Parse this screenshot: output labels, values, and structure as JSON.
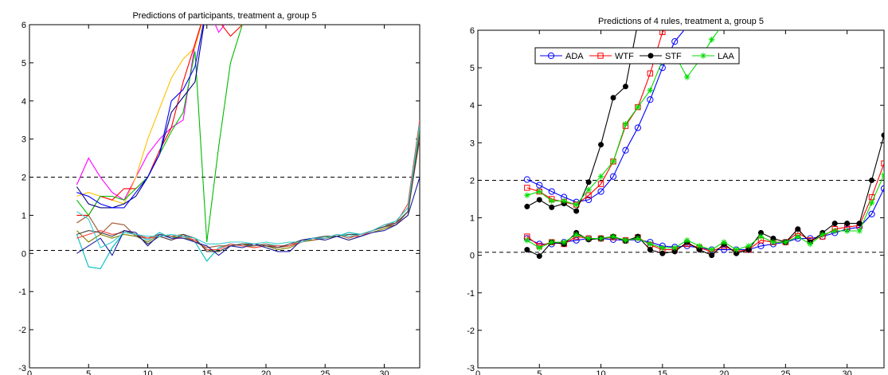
{
  "chart_data": [
    {
      "type": "line",
      "title": "Predictions of participants, treatment a, group 5",
      "xlabel": "",
      "ylabel": "",
      "xlim": [
        0,
        33
      ],
      "ylim": [
        -3,
        6
      ],
      "xticks": [
        0,
        5,
        10,
        15,
        20,
        25,
        30
      ],
      "yticks": [
        -3,
        -2,
        -1,
        0,
        1,
        2,
        3,
        4,
        5,
        6
      ],
      "grid": false,
      "reference_lines": [
        2,
        0.08
      ],
      "x": [
        4,
        5,
        6,
        7,
        8,
        9,
        10,
        11,
        12,
        13,
        14,
        15,
        16,
        17,
        18,
        19,
        20,
        21,
        22,
        23,
        24,
        25,
        26,
        27,
        28,
        29,
        30,
        31,
        32,
        33
      ],
      "series": [
        {
          "color": "#ff00ff",
          "values": [
            1.8,
            2.5,
            2.0,
            1.6,
            1.4,
            2.0,
            2.6,
            3.0,
            3.3,
            3.5,
            5.5,
            6.5,
            5.8,
            6.2,
            null,
            null,
            null,
            null,
            null,
            null,
            null,
            null,
            null,
            null,
            null,
            null,
            null,
            null,
            null,
            null
          ]
        },
        {
          "color": "#ffbf00",
          "values": [
            1.5,
            1.6,
            1.5,
            1.4,
            1.3,
            2.0,
            3.0,
            3.8,
            4.6,
            5.1,
            5.4,
            6.5,
            null,
            null,
            null,
            null,
            null,
            null,
            null,
            null,
            null,
            null,
            null,
            null,
            null,
            null,
            null,
            null,
            null,
            null
          ]
        },
        {
          "color": "#ff0000",
          "values": [
            1.0,
            1.0,
            1.5,
            1.4,
            1.7,
            1.7,
            2.0,
            2.7,
            3.3,
            4.5,
            5.5,
            6.5,
            6.1,
            5.7,
            6.0,
            6.3,
            null,
            null,
            null,
            null,
            null,
            null,
            null,
            null,
            null,
            null,
            null,
            null,
            null,
            null
          ]
        },
        {
          "color": "#00bb00",
          "values": [
            1.4,
            1.0,
            1.5,
            1.5,
            1.4,
            1.7,
            2.0,
            2.6,
            3.2,
            3.7,
            5.3,
            0.3,
            2.8,
            5.0,
            6.0,
            6.5,
            null,
            null,
            null,
            null,
            null,
            null,
            null,
            null,
            null,
            null,
            null,
            null,
            null,
            null
          ]
        },
        {
          "color": "#000080",
          "values": [
            1.75,
            1.3,
            1.2,
            1.2,
            1.3,
            1.5,
            2.0,
            2.6,
            3.7,
            4.1,
            4.5,
            6.5,
            null,
            null,
            null,
            null,
            null,
            null,
            null,
            null,
            null,
            null,
            null,
            null,
            null,
            null,
            null,
            null,
            null,
            null
          ]
        },
        {
          "color": "#0000ff",
          "values": [
            1.6,
            1.5,
            1.3,
            1.2,
            1.2,
            1.6,
            2.0,
            2.6,
            4.0,
            4.3,
            4.9,
            6.5,
            null,
            null,
            null,
            null,
            null,
            null,
            null,
            null,
            null,
            null,
            null,
            null,
            null,
            null,
            null,
            null,
            null,
            null
          ]
        },
        {
          "color": "#00bfbf",
          "values": [
            0.5,
            -0.35,
            -0.4,
            0.15,
            0.55,
            0.5,
            0.35,
            0.55,
            0.4,
            0.45,
            0.3,
            -0.2,
            0.15,
            0.25,
            0.2,
            0.2,
            0.25,
            0.2,
            0.2,
            0.35,
            0.4,
            0.45,
            0.45,
            0.55,
            0.5,
            0.6,
            0.7,
            0.85,
            1.2,
            3.3
          ]
        },
        {
          "color": "#808000",
          "values": [
            0.6,
            0.3,
            0.5,
            0.4,
            0.5,
            0.45,
            0.3,
            0.5,
            0.45,
            0.4,
            0.35,
            0.1,
            0.05,
            0.2,
            0.25,
            0.15,
            0.2,
            0.1,
            0.15,
            0.3,
            0.35,
            0.4,
            0.45,
            0.35,
            0.45,
            0.55,
            0.65,
            0.75,
            1.0,
            3.2
          ]
        },
        {
          "color": "#a0522d",
          "values": [
            0.8,
            1.0,
            0.5,
            0.8,
            0.75,
            0.45,
            0.4,
            0.5,
            0.45,
            0.5,
            0.3,
            0.15,
            0.2,
            0.2,
            0.25,
            0.2,
            0.25,
            0.15,
            0.2,
            0.35,
            0.35,
            0.4,
            0.5,
            0.4,
            0.5,
            0.6,
            0.7,
            0.75,
            1.1,
            3.0
          ]
        },
        {
          "color": "#ff4040",
          "values": [
            0.4,
            0.5,
            0.6,
            0.5,
            0.55,
            0.5,
            0.4,
            0.45,
            0.35,
            0.45,
            0.35,
            0.1,
            0.1,
            0.25,
            0.2,
            0.15,
            0.2,
            0.2,
            0.2,
            0.3,
            0.4,
            0.4,
            0.5,
            0.45,
            0.45,
            0.6,
            0.75,
            0.8,
            1.3,
            3.5
          ]
        },
        {
          "color": "#404040",
          "values": [
            0.5,
            0.6,
            0.55,
            0.45,
            0.6,
            0.5,
            0.25,
            0.45,
            0.35,
            0.5,
            0.4,
            0.05,
            0.05,
            0.2,
            0.25,
            0.25,
            0.2,
            0.15,
            0.25,
            0.35,
            0.4,
            0.45,
            0.45,
            0.5,
            0.5,
            0.6,
            0.7,
            0.8,
            1.1,
            3.1
          ]
        },
        {
          "color": "#1a1aa0",
          "values": [
            0.0,
            0.2,
            0.4,
            -0.05,
            0.6,
            0.55,
            0.2,
            0.5,
            0.4,
            0.4,
            0.3,
            0.2,
            -0.05,
            0.2,
            0.15,
            0.25,
            0.15,
            0.05,
            0.05,
            0.35,
            0.4,
            0.35,
            0.45,
            0.35,
            0.45,
            0.55,
            0.6,
            0.75,
            1.0,
            2.0
          ]
        },
        {
          "color": "#33cccc",
          "values": [
            1.1,
            0.9,
            0.15,
            0.3,
            0.55,
            0.5,
            0.45,
            0.45,
            0.5,
            0.45,
            0.4,
            0.25,
            0.25,
            0.3,
            0.3,
            0.25,
            0.3,
            0.25,
            0.3,
            0.3,
            0.4,
            0.4,
            0.5,
            0.45,
            0.5,
            0.6,
            0.75,
            0.85,
            1.2,
            3.4
          ]
        }
      ]
    },
    {
      "type": "line",
      "title": "Predictions of 4 rules, treatment a, group 5",
      "xlabel": "",
      "ylabel": "",
      "xlim": [
        0,
        33
      ],
      "ylim": [
        -3,
        6
      ],
      "xticks": [
        0,
        5,
        10,
        15,
        20,
        25,
        30
      ],
      "yticks": [
        -3,
        -2,
        -1,
        0,
        1,
        2,
        3,
        4,
        5,
        6
      ],
      "grid": false,
      "legend_position": "top-center",
      "reference_lines": [
        2,
        0.08
      ],
      "x": [
        4,
        5,
        6,
        7,
        8,
        9,
        10,
        11,
        12,
        13,
        14,
        15,
        16,
        17,
        18,
        19,
        20,
        21,
        22,
        23,
        24,
        25,
        26,
        27,
        28,
        29,
        30,
        31,
        32,
        33
      ],
      "series": [
        {
          "name": "ADA",
          "color": "#0000ff",
          "marker": "circle",
          "high": [
            2.02,
            1.87,
            1.7,
            1.55,
            1.42,
            1.48,
            1.7,
            2.1,
            2.8,
            3.4,
            4.15,
            5.0,
            5.7,
            6.1,
            null,
            null,
            null,
            null,
            null,
            null,
            null,
            null,
            null,
            null,
            null,
            null,
            null,
            null,
            null,
            null
          ],
          "low": [
            0.45,
            0.3,
            0.3,
            0.35,
            0.4,
            0.45,
            0.45,
            0.42,
            0.4,
            0.42,
            0.35,
            0.25,
            0.22,
            0.25,
            0.2,
            0.15,
            0.15,
            0.15,
            0.15,
            0.25,
            0.3,
            0.35,
            0.45,
            0.45,
            0.5,
            0.6,
            0.7,
            0.75,
            1.1,
            1.78
          ]
        },
        {
          "name": "WTF",
          "color": "#ff0000",
          "marker": "square",
          "high": [
            1.8,
            1.7,
            1.5,
            1.42,
            1.35,
            1.6,
            1.9,
            2.5,
            3.45,
            3.95,
            4.85,
            5.95,
            6.3,
            null,
            null,
            null,
            null,
            null,
            null,
            null,
            null,
            null,
            null,
            null,
            null,
            null,
            null,
            null,
            null,
            null
          ],
          "low": [
            0.5,
            0.25,
            0.35,
            0.3,
            0.5,
            0.45,
            0.45,
            0.48,
            0.4,
            0.48,
            0.28,
            0.15,
            0.15,
            0.3,
            0.2,
            0.1,
            0.25,
            0.1,
            0.15,
            0.4,
            0.35,
            0.35,
            0.6,
            0.4,
            0.5,
            0.7,
            0.75,
            0.8,
            1.55,
            2.45
          ]
        },
        {
          "name": "STF",
          "color": "#000000",
          "marker": "dot",
          "high": [
            1.3,
            1.48,
            1.28,
            1.38,
            1.18,
            1.95,
            2.95,
            4.2,
            4.5,
            6.2,
            null,
            null,
            null,
            null,
            null,
            null,
            null,
            null,
            null,
            null,
            null,
            null,
            null,
            null,
            null,
            null,
            null,
            null,
            null,
            null
          ],
          "low": [
            0.15,
            -0.02,
            0.35,
            0.3,
            0.6,
            0.42,
            0.45,
            0.5,
            0.38,
            0.5,
            0.15,
            0.05,
            0.1,
            0.35,
            0.15,
            0.0,
            0.3,
            0.05,
            0.15,
            0.6,
            0.45,
            0.35,
            0.7,
            0.35,
            0.6,
            0.85,
            0.85,
            0.85,
            2.0,
            3.2
          ]
        },
        {
          "name": "LAA",
          "color": "#00dd00",
          "marker": "star",
          "high": [
            1.6,
            1.7,
            1.45,
            1.45,
            1.35,
            1.75,
            2.1,
            2.5,
            3.5,
            3.95,
            4.4,
            5.2,
            5.35,
            4.75,
            5.2,
            5.75,
            6.2,
            null,
            null,
            null,
            null,
            null,
            null,
            null,
            null,
            null,
            null,
            null,
            null,
            null
          ],
          "low": [
            0.4,
            0.2,
            0.35,
            0.35,
            0.55,
            0.45,
            0.45,
            0.5,
            0.4,
            0.45,
            0.3,
            0.2,
            0.2,
            0.4,
            0.25,
            0.15,
            0.35,
            0.15,
            0.25,
            0.5,
            0.35,
            0.35,
            0.5,
            0.3,
            0.55,
            0.65,
            0.65,
            0.65,
            1.4,
            2.15
          ]
        }
      ]
    }
  ]
}
